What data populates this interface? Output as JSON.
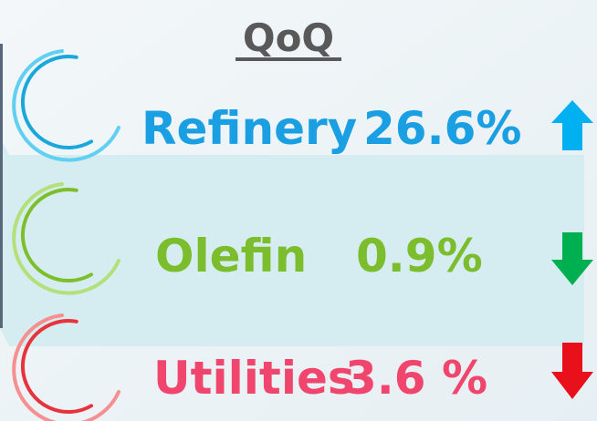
{
  "title": "QoQ",
  "rows": [
    {
      "label": "Refinery",
      "value": "26.6%"
    },
    {
      "label": "Olefin",
      "value": "0.9%"
    },
    {
      "label": "Utilities",
      "value": "3.6 %"
    }
  ]
}
